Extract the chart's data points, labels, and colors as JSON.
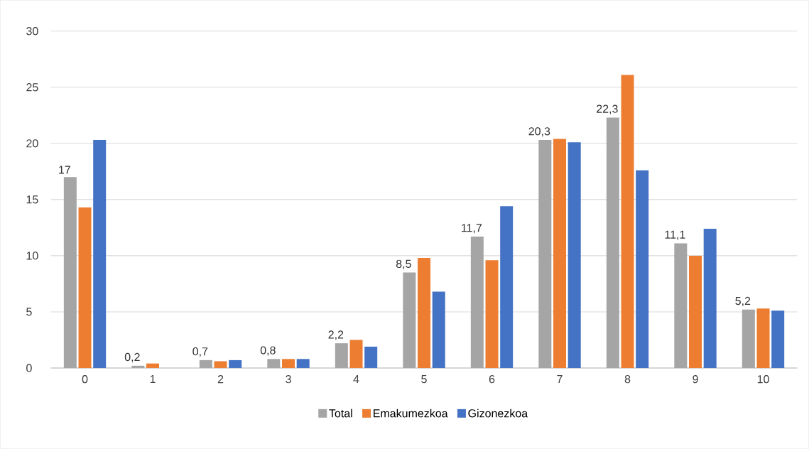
{
  "chart_data": {
    "type": "bar",
    "categories": [
      "0",
      "1",
      "2",
      "3",
      "4",
      "5",
      "6",
      "7",
      "8",
      "9",
      "10"
    ],
    "series": [
      {
        "name": "Total",
        "color": "#a5a5a5",
        "values": [
          17,
          0.2,
          0.7,
          0.8,
          2.2,
          8.5,
          11.7,
          20.3,
          22.3,
          11.1,
          5.2
        ],
        "value_labels": [
          "17",
          "0,2",
          "0,7",
          "0,8",
          "2,2",
          "8,5",
          "11,7",
          "20,3",
          "22,3",
          "11,1",
          "5,2"
        ]
      },
      {
        "name": "Emakumezkoa",
        "color": "#ed7d31",
        "values": [
          14.3,
          0.4,
          0.6,
          0.8,
          2.5,
          9.8,
          9.6,
          20.4,
          26.1,
          10.0,
          5.3
        ]
      },
      {
        "name": "Gizonezkoa",
        "color": "#4472c4",
        "values": [
          20.3,
          0,
          0.7,
          0.8,
          1.9,
          6.8,
          14.4,
          20.1,
          17.6,
          12.4,
          5.1
        ]
      }
    ],
    "ylim": [
      0,
      30
    ],
    "yticks": [
      0,
      5,
      10,
      15,
      20,
      25,
      30
    ],
    "grid": "y",
    "legend": "bottom"
  }
}
